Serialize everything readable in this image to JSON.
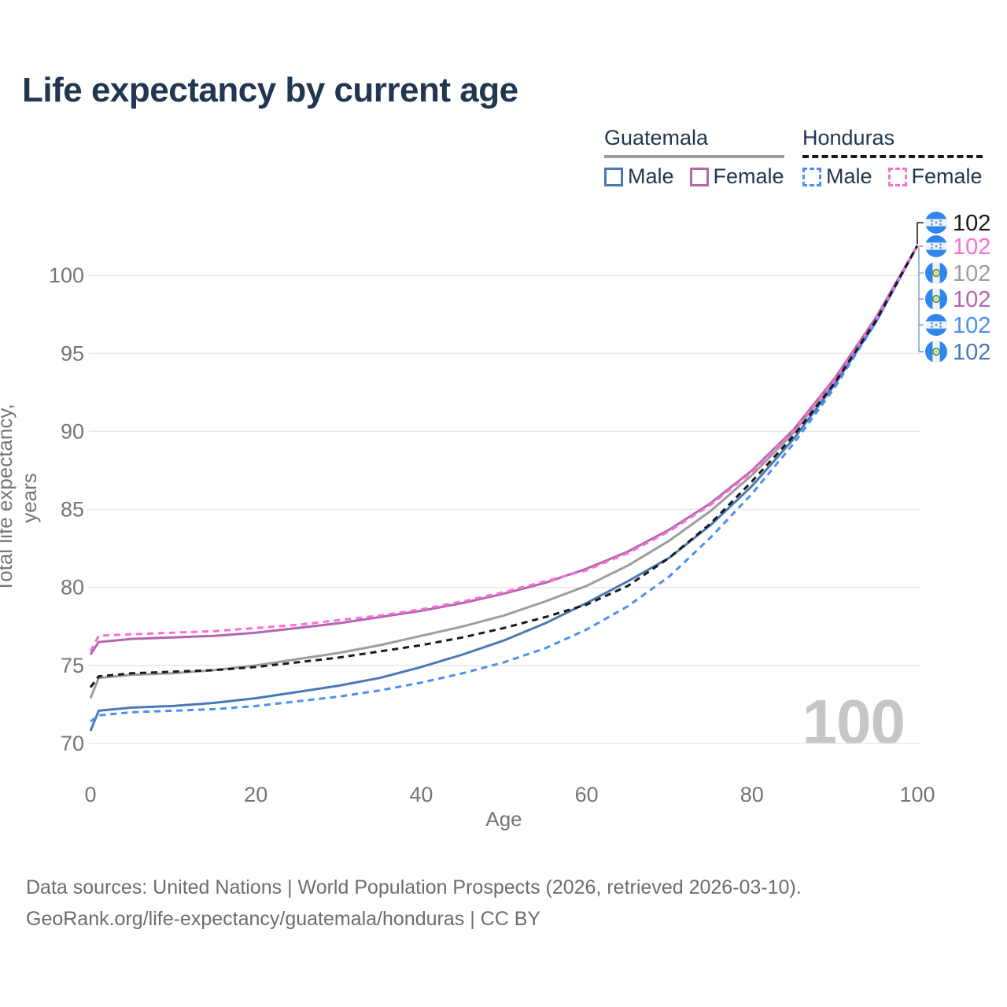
{
  "title": "Life expectancy by current age",
  "watermark": "100",
  "legend": {
    "groups": [
      {
        "name": "Guatemala",
        "line_style": "solid",
        "underline_color": "#9e9e9e",
        "items": [
          {
            "label": "Male",
            "color": "#4a79b8",
            "dashed": false
          },
          {
            "label": "Female",
            "color": "#b266ae",
            "dashed": false
          }
        ]
      },
      {
        "name": "Honduras",
        "line_style": "dashed",
        "underline_color": "#1a1a1a",
        "items": [
          {
            "label": "Male",
            "color": "#4a90f2",
            "dashed": true
          },
          {
            "label": "Female",
            "color": "#fb6ed3",
            "dashed": true
          }
        ]
      }
    ]
  },
  "chart_data": {
    "type": "line",
    "title": "Life expectancy by current age",
    "xlabel": "Age",
    "ylabel": "Total life expectancy, years",
    "xlim": [
      0,
      100
    ],
    "ylim": [
      70,
      102
    ],
    "x_ticks": [
      0,
      20,
      40,
      60,
      80,
      100
    ],
    "y_ticks": [
      70,
      75,
      80,
      85,
      90,
      95,
      100
    ],
    "grid": "horizontal-only",
    "legend_position": "top-right",
    "ages": [
      0,
      1,
      5,
      10,
      15,
      20,
      25,
      30,
      35,
      40,
      45,
      50,
      55,
      60,
      65,
      70,
      75,
      80,
      85,
      90,
      95,
      100
    ],
    "series": [
      {
        "id": "guatemala-overall",
        "name": "Guatemala",
        "sex": "both",
        "color": "#9e9e9e",
        "dash": "solid",
        "values": [
          72.9,
          74.2,
          74.4,
          74.5,
          74.7,
          75.0,
          75.4,
          75.8,
          76.3,
          76.9,
          77.5,
          78.2,
          79.1,
          80.1,
          81.4,
          83.0,
          84.9,
          87.2,
          89.9,
          93.2,
          97.2,
          101.9
        ]
      },
      {
        "id": "guatemala-male",
        "name": "Guatemala Male",
        "sex": "male",
        "color": "#4a79b8",
        "dash": "solid",
        "values": [
          70.8,
          72.1,
          72.3,
          72.4,
          72.6,
          72.9,
          73.3,
          73.7,
          74.2,
          74.9,
          75.7,
          76.6,
          77.7,
          79.0,
          80.4,
          81.9,
          84.0,
          86.5,
          89.5,
          93.0,
          97.0,
          101.9
        ]
      },
      {
        "id": "honduras-male",
        "name": "Honduras Male",
        "sex": "male",
        "color": "#4a90f2",
        "dash": "dashed",
        "values": [
          71.4,
          71.8,
          72.0,
          72.1,
          72.2,
          72.4,
          72.7,
          73.0,
          73.4,
          73.9,
          74.5,
          75.2,
          76.1,
          77.3,
          78.8,
          80.7,
          83.2,
          86.0,
          89.2,
          92.8,
          97.0,
          101.9
        ]
      },
      {
        "id": "guatemala-female",
        "name": "Guatemala Female",
        "sex": "female",
        "color": "#b266ae",
        "dash": "solid",
        "values": [
          75.7,
          76.5,
          76.7,
          76.8,
          76.9,
          77.1,
          77.4,
          77.7,
          78.1,
          78.5,
          79.0,
          79.6,
          80.3,
          81.2,
          82.3,
          83.7,
          85.4,
          87.5,
          90.1,
          93.4,
          97.3,
          101.9
        ]
      },
      {
        "id": "honduras-female",
        "name": "Honduras Female",
        "sex": "female",
        "color": "#fb6ed3",
        "dash": "dashed",
        "values": [
          75.9,
          76.9,
          77.0,
          77.1,
          77.2,
          77.4,
          77.6,
          77.9,
          78.2,
          78.6,
          79.1,
          79.7,
          80.4,
          81.1,
          82.2,
          83.6,
          85.3,
          87.4,
          90.0,
          93.3,
          97.2,
          101.9
        ]
      },
      {
        "id": "honduras-overall",
        "name": "Honduras",
        "sex": "both",
        "color": "#1a1a1a",
        "dash": "dashed",
        "values": [
          73.6,
          74.3,
          74.5,
          74.6,
          74.7,
          74.9,
          75.2,
          75.5,
          75.9,
          76.3,
          76.8,
          77.4,
          78.1,
          78.9,
          80.1,
          81.9,
          84.1,
          86.8,
          89.7,
          93.1,
          97.1,
          101.9
        ]
      }
    ],
    "end_labels": [
      {
        "series": "honduras-overall",
        "flag": "honduras",
        "value": "102",
        "color": "#1a1a1a"
      },
      {
        "series": "honduras-female",
        "flag": "honduras",
        "value": "102",
        "color": "#fb6ed3"
      },
      {
        "series": "guatemala-overall",
        "flag": "guatemala",
        "value": "102",
        "color": "#9e9e9e"
      },
      {
        "series": "guatemala-female",
        "flag": "guatemala",
        "value": "102",
        "color": "#b266ae"
      },
      {
        "series": "honduras-male",
        "flag": "honduras",
        "value": "102",
        "color": "#4a90f2"
      },
      {
        "series": "guatemala-male",
        "flag": "guatemala",
        "value": "102",
        "color": "#4a79b8"
      }
    ]
  },
  "flag_colors": {
    "blue": "#2f86ef",
    "white": "#f2f2f2",
    "wreath_green": "#5e9c44"
  },
  "footer": {
    "line1": "Data sources: United Nations | World Population Prospects (2026, retrieved 2026-03-10).",
    "line2": "GeoRank.org/life-expectancy/guatemala/honduras | CC BY"
  }
}
